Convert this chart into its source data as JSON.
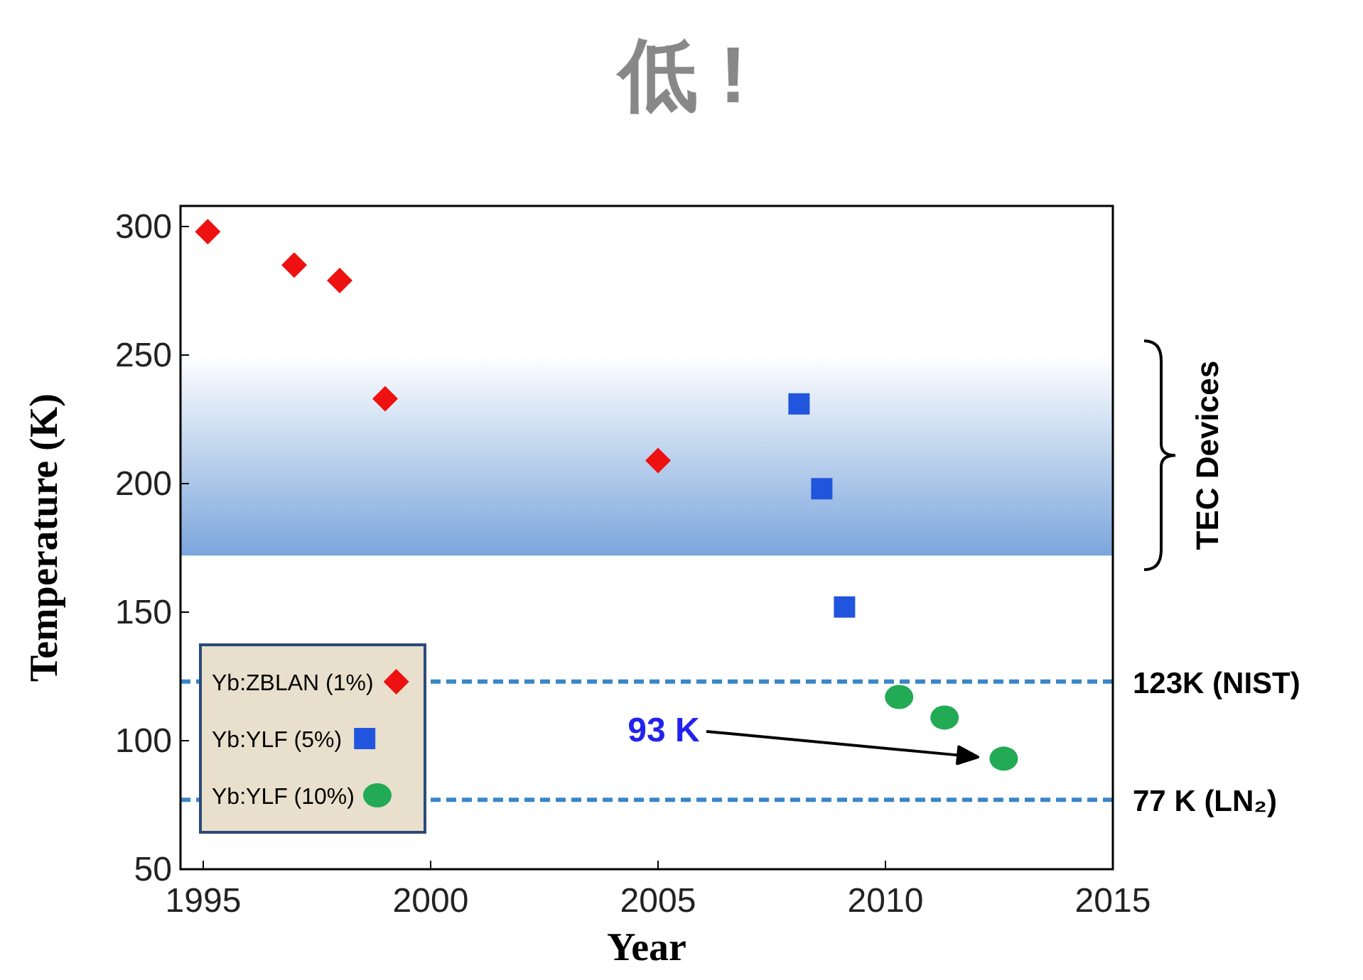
{
  "chart_data": {
    "type": "scatter",
    "title": "低 !",
    "xlabel": "Year",
    "ylabel": "Temperature (K)",
    "xlim": [
      1994.5,
      2015
    ],
    "xticks": [
      1995,
      2000,
      2005,
      2010,
      2015
    ],
    "ylim": [
      50,
      308
    ],
    "yticks": [
      50,
      100,
      150,
      200,
      250,
      300
    ],
    "grid": false,
    "legend": "bottom left",
    "series": [
      {
        "name": "Yb:ZBLAN (1%)",
        "color": "#ee1111",
        "marker": "diamond",
        "x": [
          1995.1,
          1997,
          1998,
          1999,
          2005
        ],
        "values": [
          298,
          285,
          279,
          233,
          209
        ]
      },
      {
        "name": "Yb:YLF (5%)",
        "color": "#2255dd",
        "marker": "square",
        "x": [
          2008.1,
          2008.6,
          2009.1
        ],
        "values": [
          231,
          198,
          152
        ]
      },
      {
        "name": "Yb:YLF (10%)",
        "color": "#22aa55",
        "marker": "circle",
        "x": [
          2010.3,
          2011.3,
          2012.6
        ],
        "values": [
          117,
          109,
          93
        ]
      }
    ],
    "ref_lines": [
      {
        "axis": "y",
        "value": 123,
        "label": "123K (NIST)",
        "color": "#3a86c8",
        "line_style": "dashed"
      },
      {
        "axis": "y",
        "value": 77,
        "label": "77 K (LN₂)",
        "color": "#3a86c8",
        "line_style": "dashed"
      }
    ],
    "bands": [
      {
        "axis": "y",
        "from": 172,
        "to": 250,
        "label": "TEC Devices",
        "color": "#7ba6dc"
      }
    ],
    "annotations": [
      "93 K"
    ]
  }
}
